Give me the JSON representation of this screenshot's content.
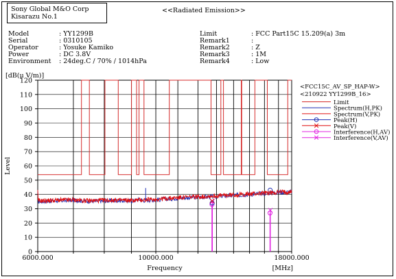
{
  "header": {
    "company": "Sony Global M&O Corp",
    "site": "Kisarazu No.1",
    "report_title": "<<Radiated Emission>>"
  },
  "meta_left": [
    {
      "label": "Model",
      "value": ": YY1299B"
    },
    {
      "label": "Serial",
      "value": ": 0310105"
    },
    {
      "label": "Operator",
      "value": ": Yosuke Kamiko"
    },
    {
      "label": "Power",
      "value": ": DC 3.8V"
    },
    {
      "label": "Environment",
      "value": ": 24deg.C / 70% / 1014hPa"
    }
  ],
  "meta_right": [
    {
      "label": "Limit",
      "value": ": FCC Part15C 15.209(a) 3m"
    },
    {
      "label": "Remark1",
      "value": ":"
    },
    {
      "label": "Remark2",
      "value": ": Z"
    },
    {
      "label": "Remark3",
      "value": ": 1M"
    },
    {
      "label": "Remark4",
      "value": ": Low"
    }
  ],
  "colors": {
    "limit": "#d62b2b",
    "spectrum_h": "#1f2fb4",
    "spectrum_v": "#e01010",
    "peak_h": "#1f2fb4",
    "peak_v": "#e01010",
    "interference": "#e020e0"
  },
  "chart_data": {
    "type": "line",
    "unit_label": "[dB(μ V/m)]",
    "ylabel": "Level",
    "xlabel": "Frequency",
    "x_unit": "[MHz]",
    "xlim": [
      6000,
      18000
    ],
    "ylim": [
      0,
      120
    ],
    "x_tick_labels": [
      {
        "value": 6000,
        "label": "6000.000"
      },
      {
        "value": 10000,
        "label": "10000.000"
      },
      {
        "value": 18000,
        "label": "18000.000"
      }
    ],
    "y_ticks": [
      0,
      10,
      20,
      30,
      40,
      50,
      60,
      70,
      80,
      90,
      100,
      110,
      120
    ],
    "x_log_scale": true,
    "x_gridlines_mhz": [
      6000,
      7000,
      8000,
      9000,
      10000,
      11000,
      12000,
      13000,
      14000,
      15000,
      16000,
      17000,
      18000
    ],
    "legend": {
      "position": "right",
      "header1": "<FCC15C_AV_SP_HAP-W>",
      "header2": "<210922 YY1299B_16>",
      "entries": [
        {
          "label": "Limit",
          "color": "#d62b2b",
          "marker": "none"
        },
        {
          "label": "Spectrum(H,PK)",
          "color": "#1f2fb4",
          "marker": "none"
        },
        {
          "label": "Spectrum(V,PK)",
          "color": "#e01010",
          "marker": "none"
        },
        {
          "label": "Peak(H)",
          "color": "#1f2fb4",
          "marker": "circle"
        },
        {
          "label": "Peak(V)",
          "color": "#e01010",
          "marker": "x"
        },
        {
          "label": "Interference(H,AV)",
          "color": "#e020e0",
          "marker": "circle"
        },
        {
          "label": "Interference(V,AV)",
          "color": "#e020e0",
          "marker": "x"
        }
      ]
    },
    "limit_steps": [
      [
        6000,
        53.9
      ],
      [
        7250,
        53.9
      ],
      [
        7250,
        120
      ],
      [
        7500,
        120
      ],
      [
        7500,
        53.9
      ],
      [
        8025,
        53.9
      ],
      [
        8025,
        120
      ],
      [
        8500,
        120
      ],
      [
        8500,
        53.9
      ],
      [
        9000,
        53.9
      ],
      [
        9000,
        120
      ],
      [
        9200,
        120
      ],
      [
        9200,
        53.9
      ],
      [
        9300,
        53.9
      ],
      [
        9300,
        120
      ],
      [
        9500,
        120
      ],
      [
        9500,
        53.9
      ],
      [
        10600,
        53.9
      ],
      [
        10600,
        120
      ],
      [
        12700,
        120
      ],
      [
        12700,
        53.9
      ],
      [
        13250,
        53.9
      ],
      [
        13250,
        120
      ],
      [
        13400,
        120
      ],
      [
        13400,
        53.9
      ],
      [
        14470,
        53.9
      ],
      [
        14470,
        120
      ],
      [
        14500,
        120
      ],
      [
        14500,
        53.9
      ],
      [
        15350,
        53.9
      ],
      [
        15350,
        120
      ],
      [
        16200,
        120
      ],
      [
        16200,
        53.9
      ],
      [
        17700,
        53.9
      ],
      [
        17700,
        120
      ],
      [
        18000,
        120
      ]
    ],
    "spectrum_h": [
      [
        6000,
        35.0
      ],
      [
        6500,
        35.6
      ],
      [
        7000,
        36.0
      ],
      [
        7500,
        35.2
      ],
      [
        8000,
        35.5
      ],
      [
        8500,
        35.8
      ],
      [
        9000,
        35.4
      ],
      [
        9300,
        36.5
      ],
      [
        9500,
        35.8
      ],
      [
        10000,
        36.2
      ],
      [
        10500,
        36.8
      ],
      [
        11000,
        37.5
      ],
      [
        12000,
        38.0
      ],
      [
        13000,
        38.6
      ],
      [
        14000,
        39.4
      ],
      [
        15000,
        40.0
      ],
      [
        16000,
        40.8
      ],
      [
        17000,
        41.4
      ],
      [
        18000,
        41.8
      ]
    ],
    "spectrum_v": [
      [
        6000,
        35.5
      ],
      [
        6500,
        35.9
      ],
      [
        7000,
        36.2
      ],
      [
        7500,
        35.6
      ],
      [
        8000,
        35.9
      ],
      [
        8500,
        36.0
      ],
      [
        9000,
        35.8
      ],
      [
        9500,
        36.2
      ],
      [
        10000,
        36.6
      ],
      [
        10500,
        37.2
      ],
      [
        11000,
        37.8
      ],
      [
        12000,
        38.4
      ],
      [
        13000,
        39.0
      ],
      [
        14000,
        39.7
      ],
      [
        15000,
        40.3
      ],
      [
        16000,
        41.0
      ],
      [
        17000,
        41.6
      ],
      [
        18000,
        42.0
      ]
    ],
    "spikes_h": [
      {
        "x": 9570,
        "y": 44.5
      }
    ],
    "peaks_h": [
      {
        "x": 12760,
        "y": 34.0
      },
      {
        "x": 16400,
        "y": 43.0
      }
    ],
    "peaks_v": [
      {
        "x": 12760,
        "y": 35.5
      },
      {
        "x": 16400,
        "y": 41.0
      }
    ],
    "interference_h": [
      {
        "x": 12750,
        "y": 33.0
      },
      {
        "x": 16390,
        "y": 27.0
      }
    ],
    "interference_v": [
      {
        "x": 12770,
        "y": 35.0
      },
      {
        "x": 16410,
        "y": 29.0
      }
    ]
  }
}
